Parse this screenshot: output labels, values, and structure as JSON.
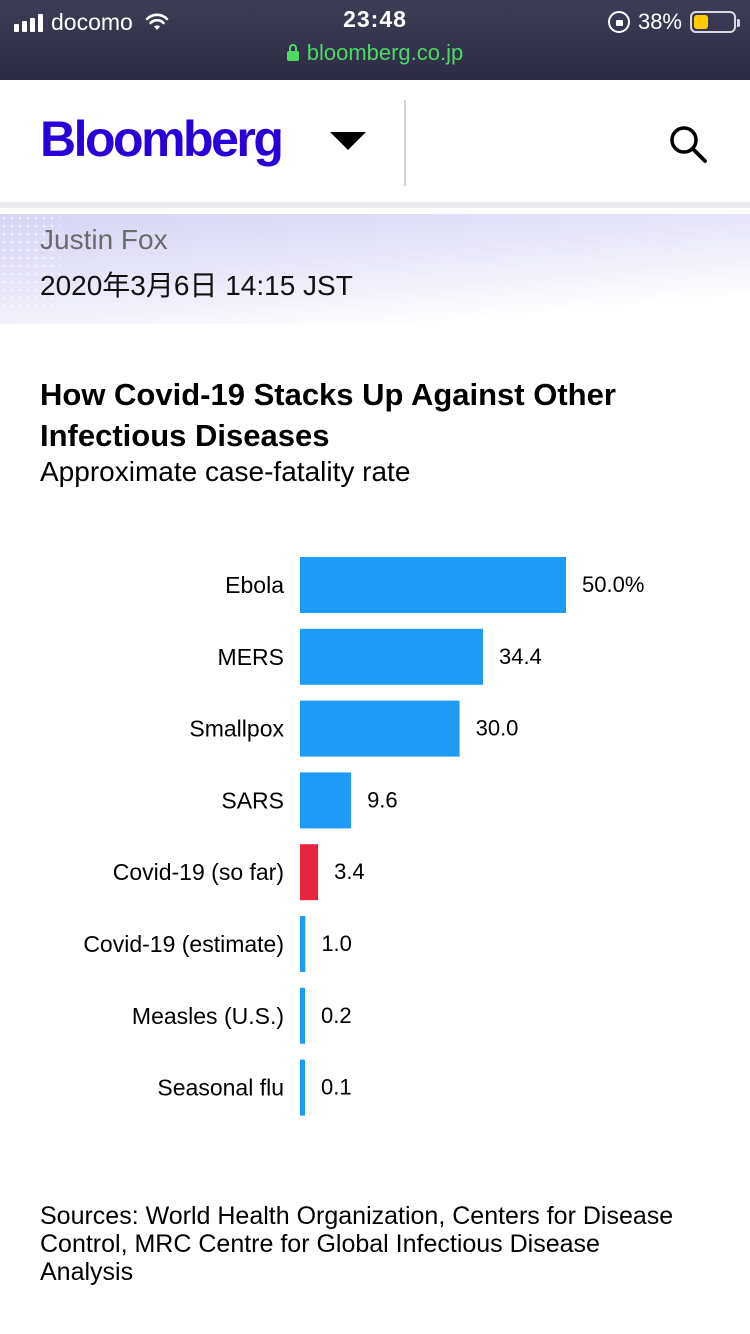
{
  "status_bar": {
    "carrier": "docomo",
    "time": "23:48",
    "battery": "38%",
    "battery_level": 0.38,
    "url": "bloomberg.co.jp"
  },
  "header": {
    "logo": "Bloomberg",
    "menu_icon": "caret-down-icon",
    "search_icon": "search-icon"
  },
  "article": {
    "author": "Justin Fox",
    "date": "2020年3月6日 14:15 JST"
  },
  "chart_data": {
    "type": "bar",
    "orientation": "horizontal",
    "title": "How Covid-19 Stacks Up Against Other Infectious Diseases",
    "subtitle": "Approximate case-fatality rate",
    "categories": [
      "Ebola",
      "MERS",
      "Smallpox",
      "SARS",
      "Covid-19 (so far)",
      "Covid-19 (estimate)",
      "Measles (U.S.)",
      "Seasonal flu"
    ],
    "values": [
      50.0,
      34.4,
      30.0,
      9.6,
      3.4,
      1.0,
      0.2,
      0.1
    ],
    "value_labels": [
      "50.0%",
      "34.4",
      "30.0",
      "9.6",
      "3.4",
      "1.0",
      "0.2",
      "0.1"
    ],
    "colors": [
      "#1e9bf7",
      "#1e9bf7",
      "#1e9bf7",
      "#1e9bf7",
      "#e8253e",
      "#1e9bf7",
      "#1e9bf7",
      "#1e9bf7"
    ],
    "xlim": [
      0,
      50
    ],
    "grid": false,
    "legend": "none",
    "sources": "Sources: World Health Organization, Centers for Disease Control, MRC Centre for Global Infectious Disease Analysis"
  }
}
